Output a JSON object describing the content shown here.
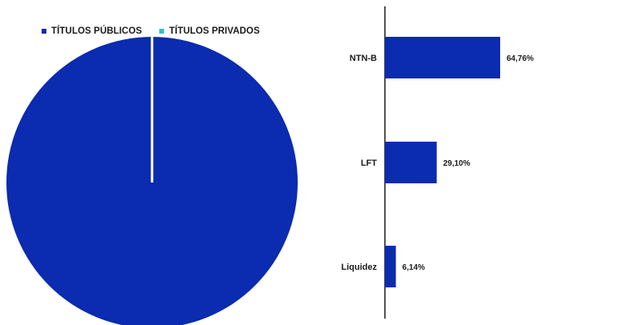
{
  "chart_data": [
    {
      "type": "pie",
      "title": "",
      "legend_placement": "top",
      "series": [
        {
          "name": "TÍTULOS PÚBLICOS",
          "value": 100,
          "color": "#0b2bb0"
        },
        {
          "name": "TÍTULOS PRIVADOS",
          "value": 0,
          "color": "#2ec4c4"
        }
      ]
    },
    {
      "type": "bar",
      "orientation": "horizontal",
      "title": "",
      "categories": [
        "NTN-B",
        "LFT",
        "Liquidez"
      ],
      "values": [
        64.76,
        29.1,
        6.14
      ],
      "value_labels": [
        "64,76%",
        "29,10%",
        "6,14%"
      ],
      "color": "#0b2bb0",
      "xlim": [
        0,
        100
      ],
      "grid": false
    }
  ]
}
